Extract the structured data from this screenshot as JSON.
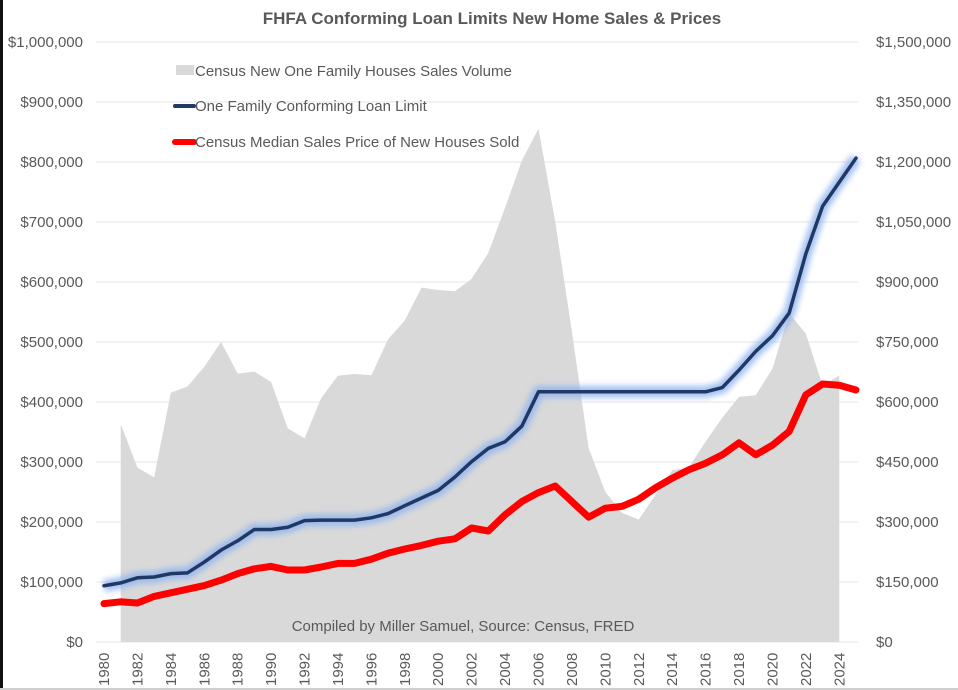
{
  "chart_data": {
    "type": "line",
    "title": "FHFA Conforming Loan Limits New Home Sales & Prices",
    "source_note": "Compiled by Miller Samuel, Source: Census, FRED",
    "xlabel": "",
    "ylabel": "",
    "legend_position": "top-left",
    "grid": true,
    "x": [
      1980,
      1981,
      1982,
      1983,
      1984,
      1985,
      1986,
      1987,
      1988,
      1989,
      1990,
      1991,
      1992,
      1993,
      1994,
      1995,
      1996,
      1997,
      1998,
      1999,
      2000,
      2001,
      2002,
      2003,
      2004,
      2005,
      2006,
      2007,
      2008,
      2009,
      2010,
      2011,
      2012,
      2013,
      2014,
      2015,
      2016,
      2017,
      2018,
      2019,
      2020,
      2021,
      2022,
      2023,
      2024,
      2025
    ],
    "x_tick_labels": [
      "1980",
      "1982",
      "1984",
      "1986",
      "1988",
      "1990",
      "1992",
      "1994",
      "1996",
      "1998",
      "2000",
      "2002",
      "2004",
      "2006",
      "2008",
      "2010",
      "2012",
      "2014",
      "2016",
      "2018",
      "2020",
      "2022",
      "2024"
    ],
    "y_left": {
      "range": [
        0,
        1000000
      ],
      "tick_labels": [
        "$0",
        "$100,000",
        "$200,000",
        "$300,000",
        "$400,000",
        "$500,000",
        "$600,000",
        "$700,000",
        "$800,000",
        "$900,000",
        "$1,000,000"
      ]
    },
    "y_right": {
      "range": [
        0,
        1500000
      ],
      "tick_labels": [
        "$0",
        "$150,000",
        "$300,000",
        "$450,000",
        "$600,000",
        "$750,000",
        "$900,000",
        "$1,050,000",
        "$1,200,000",
        "$1,350,000",
        "$1,500,000"
      ]
    },
    "series": [
      {
        "name": "Census New One Family Houses Sales Volume",
        "type": "area",
        "axis": "right",
        "color": "#d9d9d9",
        "values": [
          null,
          545000,
          436000,
          412000,
          623000,
          639000,
          688000,
          750000,
          671000,
          676000,
          650000,
          534000,
          509000,
          610000,
          666000,
          670000,
          667000,
          757000,
          804000,
          886000,
          880000,
          877000,
          908000,
          973000,
          1086000,
          1203000,
          1283000,
          1051000,
          776000,
          485000,
          375000,
          323000,
          306000,
          368000,
          429000,
          437000,
          501000,
          561000,
          613000,
          617000,
          683000,
          822000,
          771000,
          641000,
          666000,
          null
        ]
      },
      {
        "name": "One Family Conforming Loan Limit",
        "type": "line",
        "axis": "left",
        "color": "#203864",
        "glow": "#8fb4f0",
        "values": [
          93750,
          98500,
          107000,
          108300,
          114000,
          115300,
          133250,
          153100,
          168700,
          187600,
          187450,
          191250,
          202300,
          203150,
          203150,
          203150,
          207000,
          214000,
          227150,
          240000,
          252700,
          275000,
          300700,
          322700,
          333700,
          359650,
          417000,
          417000,
          417000,
          417000,
          417000,
          417000,
          417000,
          417000,
          417000,
          417000,
          417000,
          424100,
          453100,
          484350,
          510400,
          548250,
          647200,
          726200,
          766550,
          806500
        ]
      },
      {
        "name": "Census Median Sales Price of New Houses Sold",
        "type": "line",
        "axis": "left",
        "color": "#ff0000",
        "values": [
          64000,
          67000,
          65000,
          76000,
          82000,
          88000,
          94000,
          103000,
          114000,
          122000,
          126000,
          120000,
          120000,
          125000,
          131000,
          131000,
          138000,
          148000,
          155000,
          161000,
          168000,
          172000,
          190000,
          185000,
          212000,
          234000,
          249000,
          260000,
          234000,
          208000,
          223000,
          226000,
          238000,
          257000,
          273000,
          287000,
          298000,
          312000,
          332000,
          312000,
          328000,
          351000,
          412000,
          430000,
          428000,
          420000
        ]
      }
    ]
  }
}
